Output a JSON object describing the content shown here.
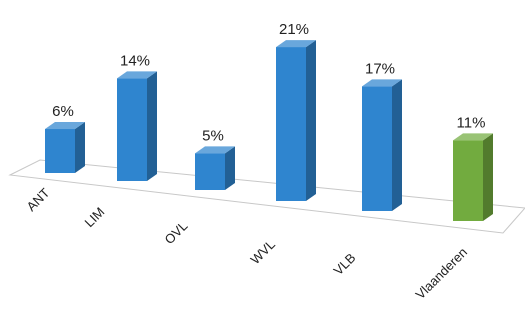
{
  "chart_data": {
    "type": "bar",
    "categories": [
      "ANT",
      "LIM",
      "OVL",
      "WVL",
      "VLB",
      "Vlaanderen"
    ],
    "values": [
      6,
      14,
      5,
      21,
      17,
      11
    ],
    "data_labels": [
      "6%",
      "14%",
      "5%",
      "21%",
      "17%",
      "11%"
    ],
    "colors": [
      "#2f85cf",
      "#2f85cf",
      "#2f85cf",
      "#2f85cf",
      "#2f85cf",
      "#72ab3f"
    ],
    "title": "",
    "xlabel": "",
    "ylabel": "",
    "ylim": [
      0,
      21
    ],
    "grid": false,
    "style": "3d-perspective"
  }
}
